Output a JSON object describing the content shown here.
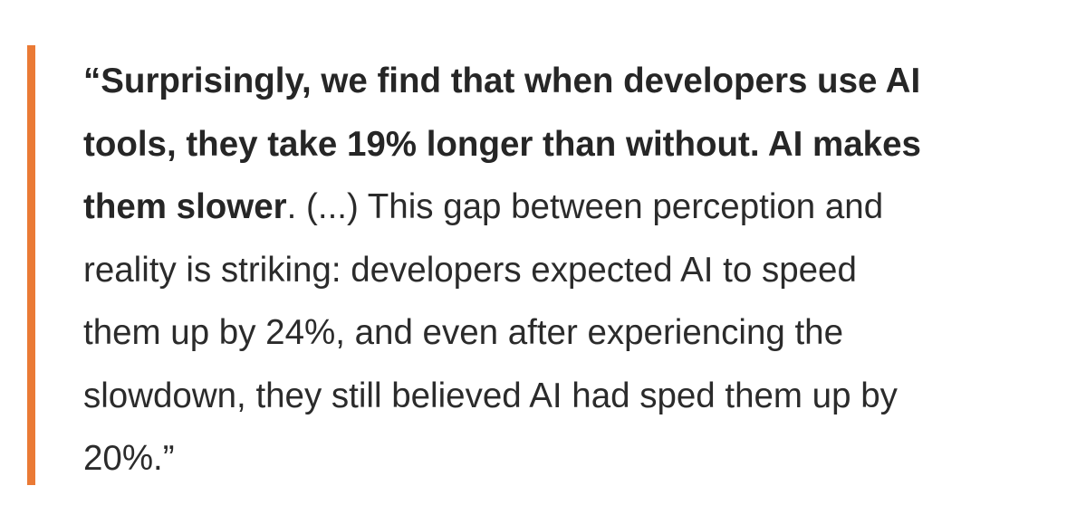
{
  "quote": {
    "accent_color": "#ea7a35",
    "segments": [
      {
        "text": "“Surprisingly, we find that when developers use AI",
        "bold": true
      },
      {
        "text": "tools, they take 19% longer than without. AI makes",
        "bold": true
      },
      {
        "text_bold": "them slower",
        "text_regular": ". (...) This gap between perception and"
      },
      {
        "text": "reality is striking: developers expected AI to speed",
        "bold": false
      },
      {
        "text": "them up by 24%, and even after experiencing the",
        "bold": false
      },
      {
        "text": "slowdown, they still believed AI had sped them up by",
        "bold": false
      },
      {
        "text": "20%.”",
        "bold": false
      }
    ]
  }
}
